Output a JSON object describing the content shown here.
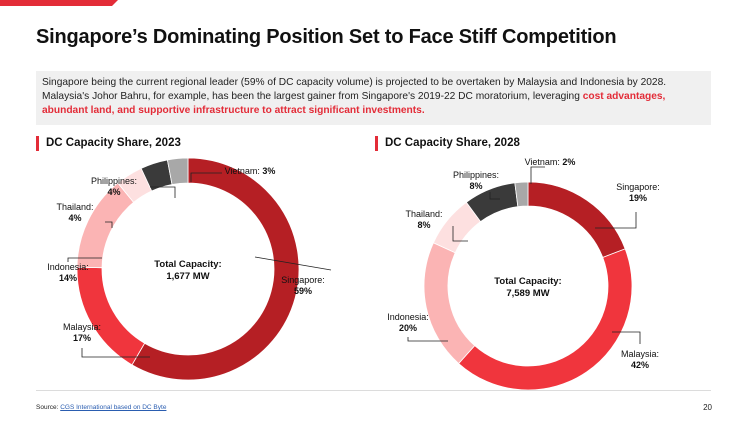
{
  "header": {
    "title": "Singapore’s Dominating Position Set to Face Stiff Competition"
  },
  "summary": {
    "text": "Singapore being the current regional leader (59% of DC capacity volume) is projected to be overtaken by Malaysia and Indonesia by 2028. Malaysia's Johor Bahru, for example, has been the largest gainer from Singapore's 2019-22 DC moratorium, leveraging ",
    "highlight": "cost advantages, abundant land, and supportive infrastructure to attract significant investments."
  },
  "colors": {
    "accent": "#e32c38",
    "singapore": "#b51f24",
    "malaysia": "#f0353d",
    "indonesia": "#fbb4b4",
    "thailand": "#fde0e0",
    "philippines": "#3a3a3a",
    "vietnam": "#a8a8a8"
  },
  "chart_data": [
    {
      "type": "pie",
      "title": "DC Capacity Share, 2023",
      "center_label": "Total Capacity:",
      "center_value": "1,677 MW",
      "slices": [
        {
          "name": "Singapore",
          "value": 59,
          "label": "59%"
        },
        {
          "name": "Malaysia",
          "value": 17,
          "label": "17%"
        },
        {
          "name": "Indonesia",
          "value": 14,
          "label": "14%"
        },
        {
          "name": "Thailand",
          "value": 4,
          "label": "4%"
        },
        {
          "name": "Philippines",
          "value": 4,
          "label": "4%"
        },
        {
          "name": "Vietnam",
          "value": 3,
          "label": "3%"
        }
      ]
    },
    {
      "type": "pie",
      "title": "DC Capacity Share, 2028",
      "center_label": "Total Capacity:",
      "center_value": "7,589 MW",
      "slices": [
        {
          "name": "Singapore",
          "value": 19,
          "label": "19%"
        },
        {
          "name": "Malaysia",
          "value": 42,
          "label": "42%"
        },
        {
          "name": "Indonesia",
          "value": 20,
          "label": "20%"
        },
        {
          "name": "Thailand",
          "value": 8,
          "label": "8%"
        },
        {
          "name": "Philippines",
          "value": 8,
          "label": "8%"
        },
        {
          "name": "Vietnam",
          "value": 2,
          "label": "2%"
        }
      ]
    }
  ],
  "footer": {
    "source_prefix": "Source: ",
    "source_link": "CGS International based on DC Byte",
    "page_number": "20"
  }
}
